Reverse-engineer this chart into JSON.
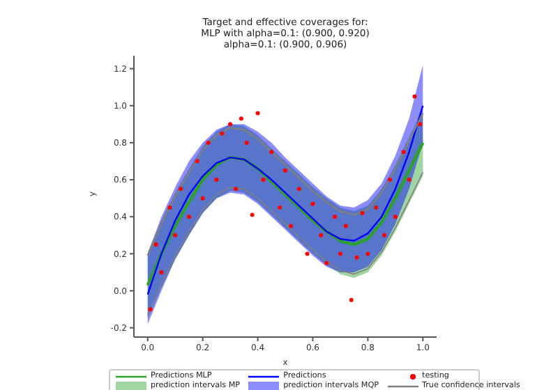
{
  "chart_data": {
    "type": "line",
    "title": "Target and effective coverages for:\nMLP with alpha=0.1: (0.900, 0.920)\nalpha=0.1: (0.900, 0.906)",
    "xlabel": "x",
    "ylabel": "y",
    "xlim": [
      -0.05,
      1.05
    ],
    "xticks": [
      {
        "value": 0,
        "label": "0.0"
      },
      0.2,
      0.4,
      0.6,
      0.8,
      {
        "value": 1,
        "label": "1.0"
      }
    ],
    "ylim": [
      -0.25,
      1.27
    ],
    "yticks": [
      -0.2,
      {
        "value": 0,
        "label": "0.0"
      },
      0.2,
      0.4,
      0.6,
      0.8,
      {
        "value": 1,
        "label": "1.0"
      },
      1.2
    ],
    "grid": false,
    "legend": "bottom",
    "marker": "none",
    "x": [
      0,
      0.05,
      0.1,
      0.15,
      0.2,
      0.25,
      0.3,
      0.35,
      0.4,
      0.45,
      0.5,
      0.55,
      0.6,
      0.65,
      0.7,
      0.75,
      0.8,
      0.85,
      0.9,
      0.95,
      1
    ],
    "series": [
      {
        "name": "Predictions MLP",
        "color": "#2ca02c",
        "values": [
          0.03,
          0.2,
          0.35,
          0.48,
          0.6,
          0.68,
          0.72,
          0.71,
          0.66,
          0.59,
          0.52,
          0.45,
          0.38,
          0.32,
          0.27,
          0.25,
          0.28,
          0.37,
          0.5,
          0.65,
          0.8
        ]
      },
      {
        "name": "prediction intervals MP",
        "type": "area",
        "color": "#2ca02c",
        "values": [
          null,
          null,
          null,
          null,
          null,
          null,
          null,
          null,
          null,
          null,
          null,
          null,
          null,
          null,
          null,
          null,
          null,
          null,
          null,
          null,
          null
        ],
        "lower": [
          -0.15,
          0.02,
          0.17,
          0.3,
          0.42,
          0.5,
          0.54,
          0.53,
          0.48,
          0.41,
          0.34,
          0.27,
          0.2,
          0.14,
          0.09,
          0.07,
          0.1,
          0.19,
          0.32,
          0.47,
          0.62
        ],
        "upper": [
          0.21,
          0.38,
          0.53,
          0.66,
          0.78,
          0.86,
          0.9,
          0.89,
          0.84,
          0.77,
          0.7,
          0.63,
          0.56,
          0.5,
          0.45,
          0.43,
          0.46,
          0.55,
          0.68,
          0.83,
          0.98
        ]
      },
      {
        "name": "Predictions",
        "color": "#0000ff",
        "values": [
          -0.02,
          0.2,
          0.38,
          0.52,
          0.62,
          0.69,
          0.72,
          0.71,
          0.66,
          0.6,
          0.53,
          0.46,
          0.39,
          0.32,
          0.28,
          0.27,
          0.31,
          0.4,
          0.55,
          0.75,
          1.0
        ]
      },
      {
        "name": "prediction intervals MQP",
        "type": "area",
        "color": "#0000ff",
        "values": [
          null,
          null,
          null,
          null,
          null,
          null,
          null,
          null,
          null,
          null,
          null,
          null,
          null,
          null,
          null,
          null,
          null,
          null,
          null,
          null,
          null
        ],
        "lower": [
          -0.18,
          0.0,
          0.17,
          0.3,
          0.42,
          0.5,
          0.53,
          0.52,
          0.47,
          0.4,
          0.33,
          0.26,
          0.19,
          0.13,
          0.1,
          0.1,
          0.13,
          0.22,
          0.36,
          0.55,
          0.8
        ],
        "upper": [
          0.2,
          0.4,
          0.56,
          0.7,
          0.8,
          0.87,
          0.9,
          0.9,
          0.86,
          0.8,
          0.72,
          0.65,
          0.58,
          0.51,
          0.46,
          0.45,
          0.49,
          0.58,
          0.73,
          0.93,
          1.22
        ]
      },
      {
        "name": "testing",
        "type": "scatter",
        "marker": "circle",
        "color": "#ff0000",
        "x": [
          0.01,
          0.03,
          0.05,
          0.08,
          0.1,
          0.12,
          0.15,
          0.18,
          0.2,
          0.22,
          0.25,
          0.27,
          0.3,
          0.32,
          0.34,
          0.36,
          0.38,
          0.4,
          0.42,
          0.45,
          0.48,
          0.5,
          0.52,
          0.55,
          0.58,
          0.6,
          0.63,
          0.65,
          0.68,
          0.7,
          0.72,
          0.74,
          0.76,
          0.78,
          0.8,
          0.83,
          0.86,
          0.88,
          0.9,
          0.93,
          0.95,
          0.97,
          0.99
        ],
        "values": [
          -0.1,
          0.25,
          0.1,
          0.45,
          0.3,
          0.55,
          0.4,
          0.7,
          0.5,
          0.8,
          0.6,
          0.85,
          0.9,
          0.55,
          0.93,
          0.8,
          0.41,
          0.96,
          0.6,
          0.75,
          0.45,
          0.65,
          0.35,
          0.55,
          0.2,
          0.47,
          0.3,
          0.15,
          0.4,
          0.2,
          0.35,
          -0.05,
          0.18,
          0.42,
          0.2,
          0.45,
          0.3,
          0.6,
          0.4,
          0.75,
          0.6,
          1.05,
          0.9
        ]
      },
      {
        "name": "True confidence intervals",
        "color": "#808080",
        "values": [
          0.19,
          0.36,
          0.51,
          0.64,
          0.76,
          0.84,
          0.88,
          0.87,
          0.82,
          0.75,
          0.68,
          0.61,
          0.54,
          0.48,
          0.43,
          0.41,
          0.44,
          0.53,
          0.66,
          0.81,
          0.96
        ]
      },
      {
        "color": "#808080",
        "values": [
          -0.13,
          0.04,
          0.19,
          0.32,
          0.44,
          0.52,
          0.56,
          0.55,
          0.5,
          0.43,
          0.36,
          0.29,
          0.22,
          0.16,
          0.11,
          0.09,
          0.12,
          0.21,
          0.34,
          0.49,
          0.64
        ]
      }
    ]
  }
}
